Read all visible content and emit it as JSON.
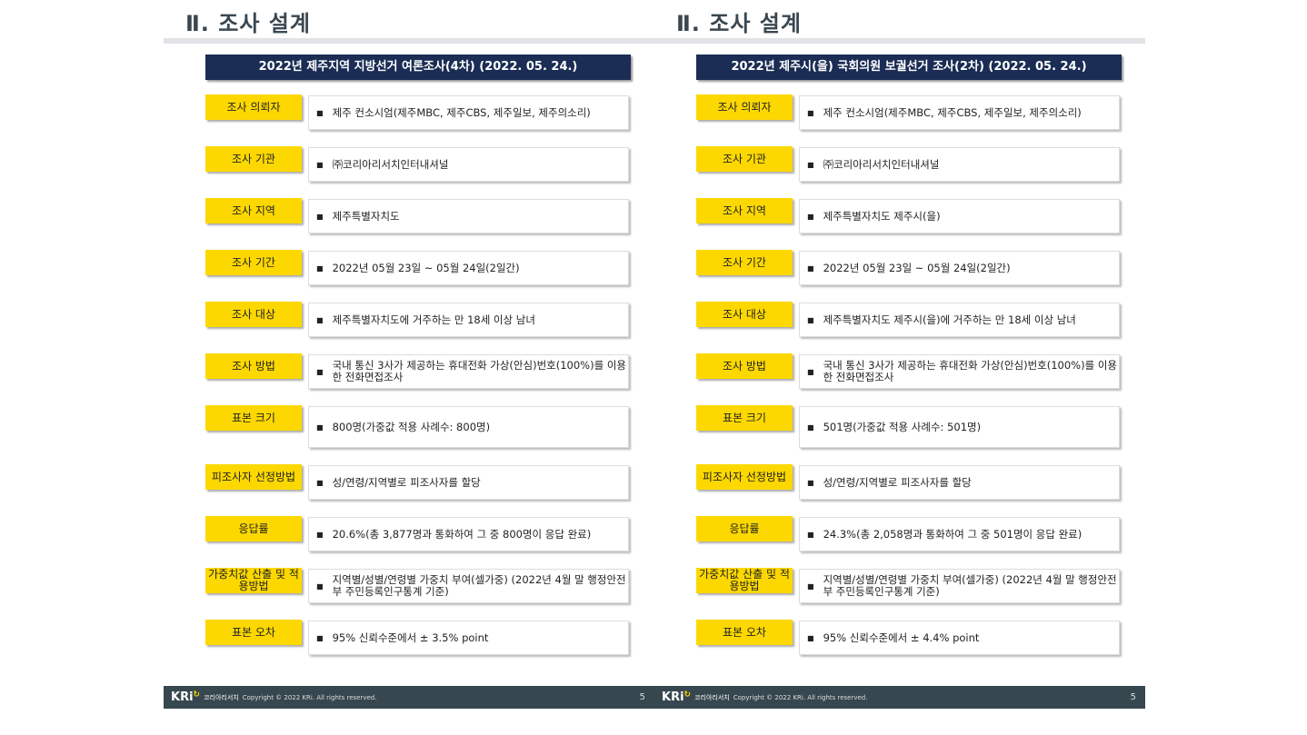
{
  "panels": [
    {
      "section_title": "Ⅱ. 조사 설계",
      "header": "2022년 제주지역 지방선거 여론조사(4차) (2022. 05. 24.)",
      "rows": [
        {
          "label": "조사 의뢰자",
          "value": "제주 컨소시엄(제주MBC, 제주CBS, 제주일보, 제주의소리)"
        },
        {
          "label": "조사 기관",
          "value": "㈜코리아리서치인터내셔널"
        },
        {
          "label": "조사 지역",
          "value": "제주특별자치도"
        },
        {
          "label": "조사 기간",
          "value": "2022년 05월 23일 ~ 05월 24일(2일간)"
        },
        {
          "label": "조사 대상",
          "value": "제주특별자치도에 거주하는 만 18세 이상 남녀"
        },
        {
          "label": "조사 방법",
          "value": "국내 통신 3사가 제공하는 휴대전화 가상(안심)번호(100%)를 이용한 전화면접조사"
        },
        {
          "label": "표본 크기",
          "value": "800명(가중값 적용 사례수: 800명)"
        },
        {
          "label": "피조사자 선정방법",
          "value": "성/연령/지역별로 피조사자를 할당"
        },
        {
          "label": "응답률",
          "value": "20.6%(총 3,877명과 통화하여 그 중 800명이 응답 완료)"
        },
        {
          "label": "가중치값 산출 및 적용방법",
          "value": "지역별/성별/연령별 가중치 부여(셀가중) (2022년 4월 말 행정안전부 주민등록인구통계 기준)"
        },
        {
          "label": "표본 오차",
          "value": "95% 신뢰수준에서 ± 3.5% point"
        }
      ],
      "footer": {
        "logo": "KRi",
        "brand": "코리아리서치",
        "copyright": "Copyright © 2022 KRi. All rights reserved.",
        "page": "5"
      }
    },
    {
      "section_title": "Ⅱ. 조사 설계",
      "header": "2022년 제주시(을) 국회의원 보궐선거 조사(2차) (2022. 05. 24.)",
      "rows": [
        {
          "label": "조사 의뢰자",
          "value": "제주 컨소시엄(제주MBC, 제주CBS, 제주일보, 제주의소리)"
        },
        {
          "label": "조사 기관",
          "value": "㈜코리아리서치인터내셔널"
        },
        {
          "label": "조사 지역",
          "value": "제주특별자치도 제주시(을)"
        },
        {
          "label": "조사 기간",
          "value": "2022년 05월 23일 ~ 05월 24일(2일간)"
        },
        {
          "label": "조사 대상",
          "value": "제주특별자치도 제주시(을)에 거주하는 만 18세 이상 남녀"
        },
        {
          "label": "조사 방법",
          "value": "국내 통신 3사가 제공하는 휴대전화 가상(안심)번호(100%)를 이용한 전화면접조사"
        },
        {
          "label": "표본 크기",
          "value": "501명(가중값 적용 사례수: 501명)"
        },
        {
          "label": "피조사자 선정방법",
          "value": "성/연령/지역별로 피조사자를 할당"
        },
        {
          "label": "응답률",
          "value": "24.3%(총 2,058명과 통화하여 그 중 501명이 응답 완료)"
        },
        {
          "label": "가중치값 산출 및 적용방법",
          "value": "지역별/성별/연령별 가중치 부여(셀가중) (2022년 4월 말 행정안전부 주민등록인구통계 기준)"
        },
        {
          "label": "표본 오차",
          "value": "95% 신뢰수준에서 ± 4.4% point"
        }
      ],
      "footer": {
        "logo": "KRi",
        "brand": "코리아리서치",
        "copyright": "Copyright © 2022 KRi. All rights reserved.",
        "page": "5"
      }
    }
  ]
}
